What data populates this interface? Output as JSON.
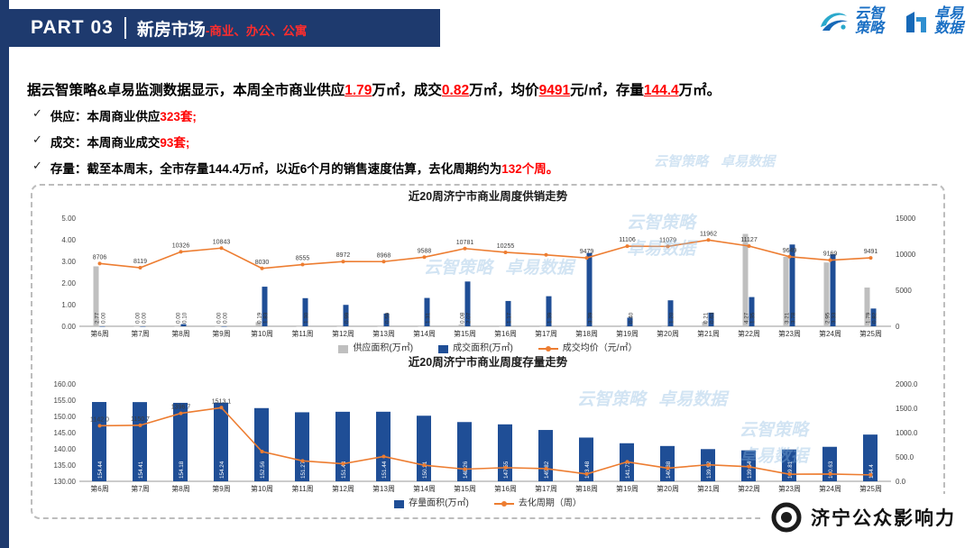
{
  "colors": {
    "navy": "#1e3a6e",
    "bar_blue": "#1f4e96",
    "bar_gray": "#bfbfbf",
    "line_orange": "#ed7d31",
    "highlight_red": "#ff0000",
    "logo_blue": "#1a6fc4",
    "logo_teal": "#2aa9cc"
  },
  "header": {
    "part": "PART 03",
    "title": "新房市场",
    "subtitle": "-商业、办公、公寓",
    "logo1_line1": "云智",
    "logo1_line2": "策略",
    "logo2_line1": "卓易",
    "logo2_line2": "数据"
  },
  "check_icon": "✓",
  "summary": {
    "parts": [
      {
        "t": "据云智策略&卓易监测数据显示，本周全市商业供应",
        "s": "n"
      },
      {
        "t": "1.79",
        "s": "ru"
      },
      {
        "t": "万㎡，成交",
        "s": "n"
      },
      {
        "t": "0.82",
        "s": "ru"
      },
      {
        "t": "万㎡，均价",
        "s": "n"
      },
      {
        "t": "9491",
        "s": "ru"
      },
      {
        "t": "元/㎡，存量",
        "s": "n"
      },
      {
        "t": "144.4",
        "s": "ru"
      },
      {
        "t": "万㎡。",
        "s": "n"
      }
    ]
  },
  "bullets": [
    {
      "parts": [
        {
          "t": "供应：",
          "s": "n"
        },
        {
          "t": "本周商业供应",
          "s": "n"
        },
        {
          "t": "323套;",
          "s": "r"
        }
      ]
    },
    {
      "parts": [
        {
          "t": "成交：",
          "s": "n"
        },
        {
          "t": "本周商业成交",
          "s": "n"
        },
        {
          "t": "93套;",
          "s": "r"
        }
      ]
    },
    {
      "parts": [
        {
          "t": "存量：",
          "s": "n"
        },
        {
          "t": "截至本周末，全市存量144.4万㎡，以近6个月的销售速度估算，去化周期约为",
          "s": "n"
        },
        {
          "t": "132个周。",
          "s": "r"
        }
      ]
    }
  ],
  "chart_data": [
    {
      "type": "combo",
      "title": "近20周济宁市商业周度供销走势",
      "categories": [
        "第6周",
        "第7周",
        "第8周",
        "第9周",
        "第10周",
        "第11周",
        "第12周",
        "第13周",
        "第14周",
        "第15周",
        "第16周",
        "第17周",
        "第18周",
        "第19周",
        "第20周",
        "第21周",
        "第22周",
        "第23周",
        "第24周",
        "第25周"
      ],
      "y_left": {
        "min": 0,
        "max": 5,
        "ticks": [
          {
            "v": 5,
            "t": "5.00"
          },
          {
            "v": 4,
            "t": "4.00"
          },
          {
            "v": 3,
            "t": "3.00"
          },
          {
            "v": 2,
            "t": "2.00"
          },
          {
            "v": 1,
            "t": "1.00"
          },
          {
            "v": 0,
            "t": "0.00"
          }
        ]
      },
      "y_right": {
        "min": 0,
        "max": 15000,
        "ticks": [
          {
            "v": 15000,
            "t": "15000"
          },
          {
            "v": 10000,
            "t": "10000"
          },
          {
            "v": 5000,
            "t": "5000"
          },
          {
            "v": 0,
            "t": "0"
          }
        ]
      },
      "series": [
        {
          "name": "供应面积(万㎡)",
          "kind": "bar",
          "axis": "left",
          "color": "#bfbfbf",
          "label_style": "out",
          "values": [
            2.77,
            0,
            0,
            0,
            0.19,
            0,
            0,
            0,
            0,
            0.08,
            0,
            0,
            0,
            0,
            0,
            0.21,
            4.27,
            3.21,
            2.95,
            1.79
          ],
          "labels": [
            "2.77",
            "0.00",
            "0.00",
            "0.00",
            "0.19",
            "",
            "",
            "",
            "",
            "0.08",
            "",
            "",
            "",
            "",
            "",
            "0.21",
            "4.27",
            "3.21",
            "2.95",
            "1.79"
          ]
        },
        {
          "name": "成交面积(万㎡)",
          "kind": "bar",
          "axis": "left",
          "color": "#1f4e96",
          "label_style": "out",
          "values": [
            0,
            0,
            0.1,
            0,
            1.83,
            1.3,
            0.99,
            0.59,
            1.31,
            2.07,
            1.17,
            1.39,
            3.39,
            0.4,
            1.2,
            0.63,
            1.35,
            3.78,
            3.33,
            0.82
          ],
          "labels": [
            "0.00",
            "0.00",
            "0.10",
            "0.00",
            "1.83",
            "1.30",
            "0.99",
            "0.59",
            "1.31",
            "2.07",
            "1.17",
            "1.39",
            "3.39",
            "0.40",
            "1.20",
            "0.63",
            "1.35",
            "3.78",
            "3.33",
            "0.82"
          ]
        },
        {
          "name": "成交均价（元/㎡）",
          "kind": "line",
          "axis": "right",
          "color": "#ed7d31",
          "values": [
            8706,
            8119,
            10326,
            10843,
            8030,
            8555,
            8972,
            8968,
            9588,
            10781,
            10255,
            9900,
            9479,
            11106,
            11079,
            11962,
            11127,
            9649,
            9169,
            9491
          ],
          "labels": [
            "8706",
            "8119",
            "10326",
            "10843",
            "8030",
            "8555",
            "8972",
            "8968",
            "9588",
            "10781",
            "10255",
            "",
            "9479",
            "11106",
            "11079",
            "11962",
            "11127",
            "9649",
            "9169",
            "9491"
          ]
        }
      ],
      "legend": [
        {
          "label": "供应面积(万㎡)",
          "swatch": "bar",
          "color": "#bfbfbf"
        },
        {
          "label": "成交面积(万㎡)",
          "swatch": "bar",
          "color": "#1f4e96"
        },
        {
          "label": "成交均价（元/㎡）",
          "swatch": "line",
          "color": "#ed7d31"
        }
      ]
    },
    {
      "type": "combo",
      "title": "近20周济宁市商业周度存量走势",
      "categories": [
        "第6周",
        "第7周",
        "第8周",
        "第9周",
        "第10周",
        "第11周",
        "第12周",
        "第13周",
        "第14周",
        "第15周",
        "第16周",
        "第17周",
        "第18周",
        "第19周",
        "第20周",
        "第21周",
        "第22周",
        "第23周",
        "第24周",
        "第25周"
      ],
      "y_left": {
        "min": 130,
        "max": 160,
        "ticks": [
          {
            "v": 160,
            "t": "160.00"
          },
          {
            "v": 155,
            "t": "155.00"
          },
          {
            "v": 150,
            "t": "150.00"
          },
          {
            "v": 145,
            "t": "145.00"
          },
          {
            "v": 140,
            "t": "140.00"
          },
          {
            "v": 135,
            "t": "135.00"
          },
          {
            "v": 130,
            "t": "130.00"
          }
        ]
      },
      "y_right": {
        "min": 0,
        "max": 2000,
        "ticks": [
          {
            "v": 2000,
            "t": "2000.0"
          },
          {
            "v": 1500,
            "t": "1500.0"
          },
          {
            "v": 1000,
            "t": "1000.0"
          },
          {
            "v": 500,
            "t": "500.0"
          },
          {
            "v": 0,
            "t": "0.0"
          }
        ]
      },
      "series": [
        {
          "name": "存量面积(万㎡)",
          "kind": "bar",
          "axis": "left",
          "color": "#1f4e96",
          "label_style": "in",
          "values": [
            154.44,
            154.41,
            154.18,
            154.24,
            152.56,
            151.27,
            151.43,
            151.44,
            150.21,
            148.26,
            147.55,
            145.82,
            143.48,
            141.73,
            140.88,
            139.92,
            139.54,
            139.81,
            140.63,
            144.4
          ],
          "labels": [
            "154.44",
            "154.41",
            "154.18",
            "154.24",
            "152.56",
            "151.27",
            "151.43",
            "151.44",
            "150.21",
            "148.26",
            "147.55",
            "145.82",
            "143.48",
            "141.73",
            "140.88",
            "139.92",
            "139.54",
            "139.81",
            "140.63",
            "144.4"
          ]
        },
        {
          "name": "去化周期（周）",
          "kind": "line",
          "axis": "right",
          "color": "#ed7d31",
          "values": [
            1142.0,
            1150.7,
            1396.7,
            1513.1,
            610,
            420,
            360,
            510,
            330,
            250,
            280,
            260,
            150,
            400,
            270,
            340,
            300,
            145,
            150,
            132
          ],
          "labels": [
            "1142.0",
            "1150.7",
            "1396.7",
            "1513.1",
            "",
            "",
            "",
            "",
            "",
            "",
            "",
            "",
            "",
            "",
            "",
            "",
            "",
            "",
            "",
            ""
          ]
        }
      ],
      "legend": [
        {
          "label": "存量面积(万㎡)",
          "swatch": "bar",
          "color": "#1f4e96"
        },
        {
          "label": "去化周期（周）",
          "swatch": "line",
          "color": "#ed7d31"
        }
      ]
    }
  ],
  "watermark": {
    "brand1": "云智策略",
    "brand2": "卓易数据"
  },
  "footer": {
    "stamp": "济宁公众影响力"
  }
}
